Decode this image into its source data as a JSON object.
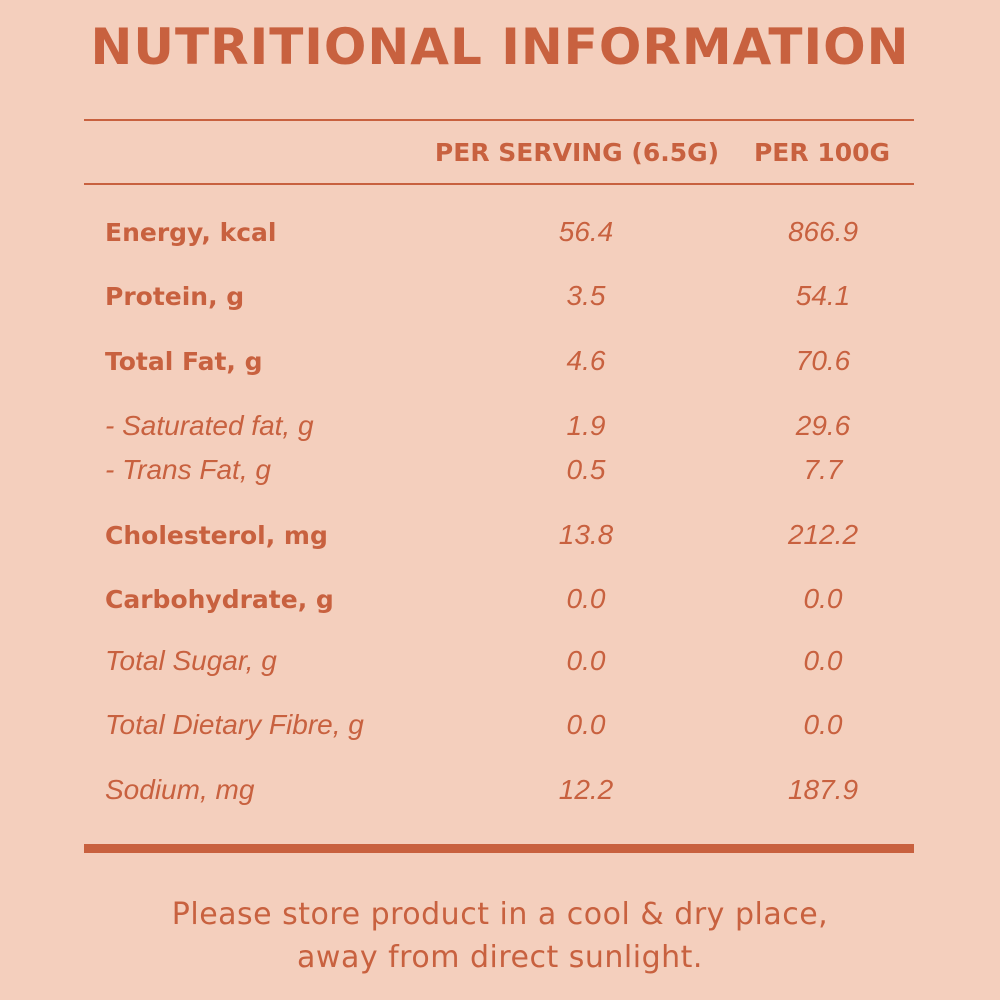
{
  "title": "NUTRITIONAL INFORMATION",
  "columns": [
    "PER SERVING (6.5G)",
    "PER 100G"
  ],
  "rows": [
    {
      "label": "Energy, kcal",
      "style": "bold",
      "serving": "56.4",
      "per100": "866.9"
    },
    {
      "label": "Protein, g",
      "style": "bold",
      "serving": "3.5",
      "per100": "54.1"
    },
    {
      "label": "Total Fat, g",
      "style": "bold",
      "serving": "4.6",
      "per100": "70.6"
    },
    {
      "label": "- Saturated fat, g",
      "style": "italic",
      "serving": "1.9",
      "per100": "29.6"
    },
    {
      "label": "- Trans Fat, g",
      "style": "italic",
      "serving": "0.5",
      "per100": "7.7"
    },
    {
      "label": "Cholesterol, mg",
      "style": "bold",
      "serving": "13.8",
      "per100": "212.2"
    },
    {
      "label": "Carbohydrate, g",
      "style": "bold",
      "serving": "0.0",
      "per100": "0.0"
    },
    {
      "label": "Total Sugar, g",
      "style": "italic",
      "serving": "0.0",
      "per100": "0.0"
    },
    {
      "label": "Total Dietary Fibre, g",
      "style": "italic",
      "serving": "0.0",
      "per100": "0.0"
    },
    {
      "label": "Sodium, mg",
      "style": "italic",
      "serving": "12.2",
      "per100": "187.9"
    }
  ],
  "footer": [
    "Please store product in a cool & dry place,",
    "away from direct sunlight."
  ],
  "colors": {
    "background": "#f4cfbd",
    "accent": "#c8613f"
  }
}
